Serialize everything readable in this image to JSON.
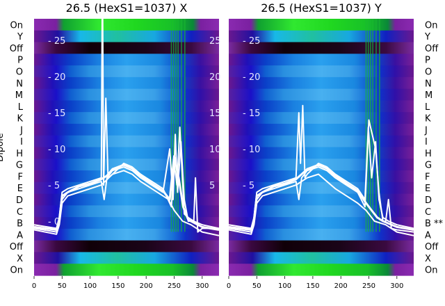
{
  "chart_data": [
    {
      "type": "heatmap",
      "title": "26.5 (HexS1=1037) X",
      "ylabel": "Dipole",
      "xlim": [
        0,
        330
      ],
      "x_ticks": [
        0,
        50,
        100,
        150,
        200,
        250,
        300
      ],
      "x_tick_labels": [
        "0",
        "50",
        "100",
        "150",
        "200",
        "250",
        "300"
      ],
      "overlay_ylim": [
        -7.5,
        28
      ],
      "overlay_ticks": [
        0,
        5,
        10,
        15,
        20,
        25
      ],
      "overlay_tick_labels": [
        "- 0",
        "- 5",
        "- 10",
        "- 15",
        "- 20",
        "- 25"
      ],
      "overlay_right_tick_labels": [
        "",
        "5",
        "10",
        "15",
        "20",
        "25"
      ],
      "rows": [
        "On",
        "Y",
        "Off",
        "P",
        "O",
        "N",
        "M",
        "L",
        "K",
        "J",
        "I",
        "H",
        "G",
        "F",
        "E",
        "D",
        "C",
        "B",
        "A",
        "Off",
        "X",
        "On"
      ],
      "row_labels_left": [
        "On",
        "Y",
        "Off",
        "P",
        "O",
        "N",
        "M",
        "L",
        "K",
        "J",
        "I",
        "H",
        "G",
        "F",
        "E",
        "D",
        "C",
        "B",
        "A",
        "Off",
        "X",
        "On"
      ],
      "row_labels_right": [],
      "series": [
        {
          "x": [
            0,
            40,
            45,
            50,
            60,
            80,
            100,
            120,
            125,
            130,
            140,
            160,
            175,
            190,
            210,
            230,
            242,
            248,
            252,
            256,
            262,
            268,
            275,
            285,
            288,
            292,
            300,
            330
          ],
          "y": [
            -1,
            -1.5,
            0,
            3,
            4,
            4.5,
            5,
            5.5,
            3,
            6,
            7,
            7.5,
            7,
            6,
            5,
            4,
            10,
            3,
            12,
            4,
            11,
            3,
            0,
            0,
            6,
            -1.5,
            -1,
            -1
          ]
        },
        {
          "x": [
            0,
            40,
            45,
            50,
            60,
            80,
            100,
            120,
            122,
            124,
            128,
            132,
            140,
            160,
            175,
            190,
            210,
            230,
            245,
            250,
            255,
            260,
            268,
            275,
            285,
            300,
            330
          ],
          "y": [
            -0.5,
            -1,
            0.5,
            4,
            4.5,
            5,
            5.5,
            6,
            35,
            5,
            17,
            6,
            6.5,
            8,
            7.5,
            6.5,
            5.5,
            4.5,
            2,
            8,
            5,
            13,
            1,
            0.5,
            0,
            -0.5,
            -1
          ]
        },
        {
          "x": [
            0,
            40,
            45,
            50,
            60,
            80,
            100,
            120,
            130,
            140,
            160,
            175,
            190,
            210,
            230,
            242,
            250,
            258,
            266,
            275,
            300,
            330
          ],
          "y": [
            -0.8,
            -1.2,
            0.2,
            3.5,
            4,
            4.8,
            5.2,
            5.8,
            6.3,
            7.2,
            7.8,
            7.3,
            6.3,
            5.2,
            4.2,
            3,
            9,
            6,
            2,
            0.2,
            -0.8,
            -1.2
          ]
        },
        {
          "x": [
            0,
            40,
            45,
            50,
            60,
            80,
            100,
            120,
            140,
            160,
            175,
            190,
            210,
            230,
            240,
            250,
            265,
            280,
            300,
            330
          ],
          "y": [
            -1.2,
            -1.8,
            -0.5,
            2.5,
            3.5,
            4,
            4.5,
            5,
            6.5,
            7,
            6.5,
            5.5,
            4.5,
            3.5,
            3,
            1.5,
            0,
            -0.5,
            -1.5,
            -2
          ]
        }
      ]
    },
    {
      "type": "heatmap",
      "title": "26.5 (HexS1=1037) Y",
      "ylabel": "",
      "xlim": [
        0,
        330
      ],
      "x_ticks": [
        0,
        50,
        100,
        150,
        200,
        250,
        300
      ],
      "x_tick_labels": [
        "0",
        "50",
        "100",
        "150",
        "200",
        "250",
        "300"
      ],
      "overlay_ylim": [
        -7.5,
        28
      ],
      "overlay_ticks": [
        0,
        5,
        10,
        15,
        20,
        25
      ],
      "overlay_tick_labels": [
        "",
        "- 5",
        "- 10",
        "- 15",
        "- 20",
        "- 25"
      ],
      "overlay_right_tick_labels": [],
      "rows": [
        "On",
        "Y",
        "Off",
        "P",
        "O",
        "N",
        "M",
        "L",
        "K",
        "J",
        "I",
        "H",
        "G",
        "F",
        "E",
        "D",
        "C",
        "B",
        "A",
        "Off",
        "X",
        "On"
      ],
      "row_labels_left": [],
      "row_labels_right": [
        "On",
        "Y",
        "Off",
        "P",
        "O",
        "N",
        "M",
        "L",
        "K",
        "J",
        "I",
        "H",
        "G",
        "F",
        "E",
        "D",
        "C",
        "B **",
        "A",
        "Off",
        "X",
        "On"
      ],
      "series": [
        {
          "x": [
            0,
            40,
            45,
            50,
            60,
            80,
            100,
            120,
            125,
            130,
            140,
            160,
            175,
            190,
            210,
            230,
            243,
            250,
            262,
            268,
            275,
            280,
            285,
            290,
            300,
            330
          ],
          "y": [
            -1,
            -1.5,
            0,
            3,
            4,
            4.5,
            5,
            5.5,
            3,
            6,
            7,
            7.5,
            7,
            6,
            5,
            4,
            2,
            14,
            10,
            4,
            0,
            0,
            3,
            -1,
            -1.2,
            -1.5
          ]
        },
        {
          "x": [
            0,
            40,
            45,
            50,
            60,
            80,
            100,
            120,
            125,
            128,
            132,
            136,
            140,
            160,
            175,
            190,
            210,
            230,
            243,
            249,
            255,
            262,
            268,
            275,
            285,
            300,
            330
          ],
          "y": [
            -0.5,
            -1,
            0.5,
            4,
            4.5,
            5,
            5.5,
            6,
            15,
            8,
            16,
            6,
            6.5,
            8,
            7.5,
            6.5,
            5.5,
            4.5,
            3,
            13,
            6,
            11,
            3,
            0.5,
            0,
            -0.5,
            -1
          ]
        },
        {
          "x": [
            0,
            40,
            45,
            50,
            60,
            80,
            100,
            120,
            140,
            160,
            175,
            190,
            210,
            230,
            245,
            255,
            265,
            275,
            300,
            330
          ],
          "y": [
            -0.8,
            -1.2,
            0.2,
            3.5,
            4,
            4.8,
            5.2,
            5.8,
            7.2,
            7.8,
            7.3,
            6.3,
            5.2,
            4.2,
            2.5,
            1.5,
            0.5,
            0,
            -0.8,
            -1.2
          ]
        },
        {
          "x": [
            0,
            40,
            45,
            50,
            60,
            80,
            100,
            120,
            140,
            160,
            175,
            190,
            210,
            230,
            245,
            260,
            280,
            300,
            330
          ],
          "y": [
            -1.2,
            -1.8,
            -0.5,
            2.5,
            3.5,
            4,
            4.5,
            5,
            6,
            6.5,
            5.5,
            4.5,
            3.5,
            2.5,
            1.5,
            0,
            -0.5,
            -1.5,
            -2
          ]
        }
      ]
    }
  ],
  "colors": {
    "background": "#ffffff",
    "overlay_line": "#ffffff",
    "text": "#000000",
    "off_row": "#2a0030",
    "on_row": "#22cc22",
    "purple": "#6a1890",
    "blue_mid": "#1878d8",
    "blue_deep": "#1a10c8",
    "cyan": "#40b0f0",
    "green_stripe": "#18b830"
  }
}
